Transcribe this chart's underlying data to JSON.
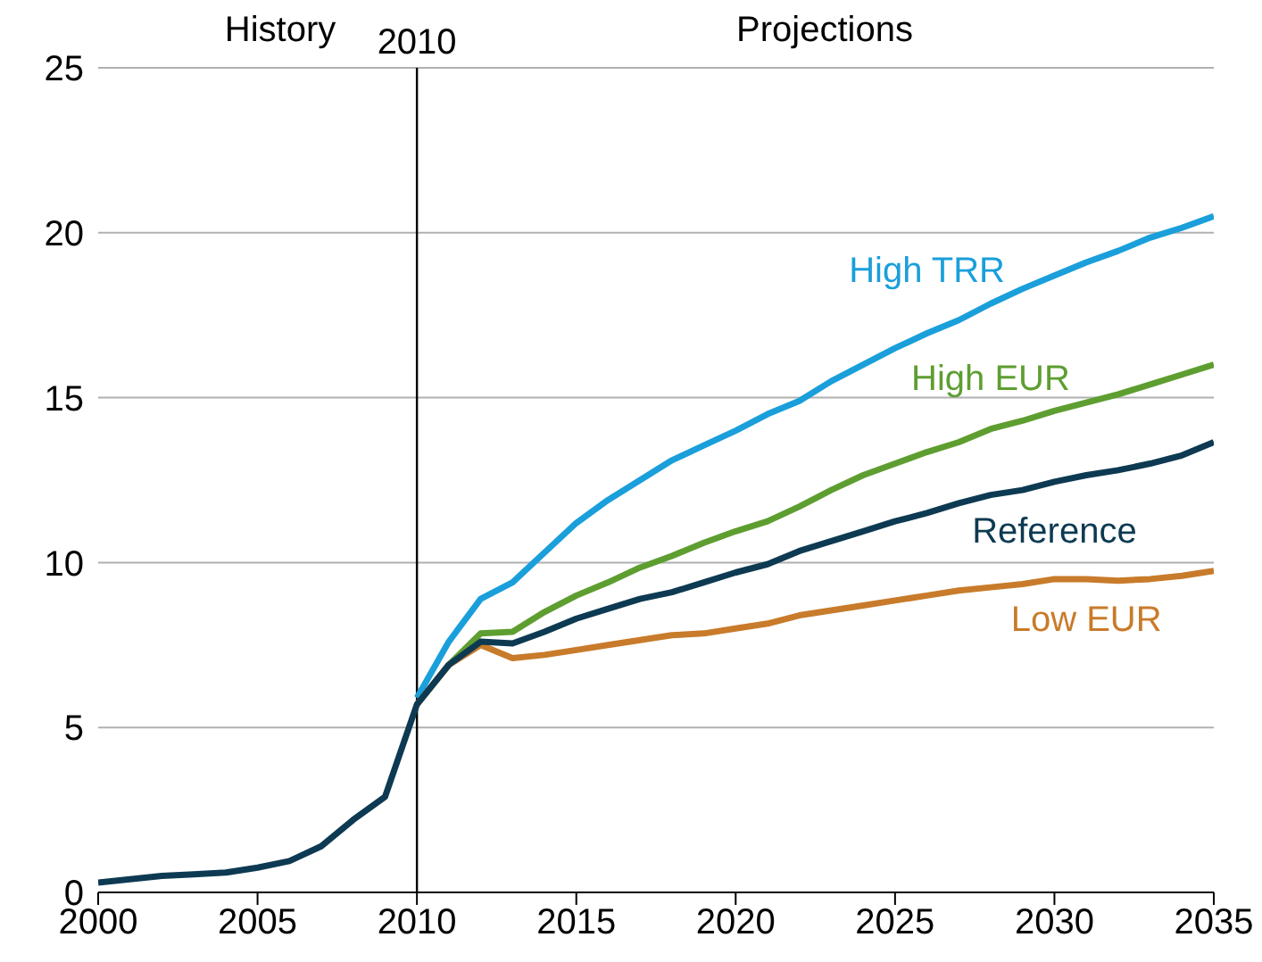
{
  "chart_data": {
    "type": "line",
    "x": [
      2000,
      2001,
      2002,
      2003,
      2004,
      2005,
      2006,
      2007,
      2008,
      2009,
      2010,
      2011,
      2012,
      2013,
      2014,
      2015,
      2016,
      2017,
      2018,
      2019,
      2020,
      2021,
      2022,
      2023,
      2024,
      2025,
      2026,
      2027,
      2028,
      2029,
      2030,
      2031,
      2032,
      2033,
      2034,
      2035
    ],
    "series": [
      {
        "name": "High TRR",
        "color": "#1a9fdb",
        "values": [
          null,
          null,
          null,
          null,
          null,
          null,
          null,
          null,
          null,
          null,
          5.9,
          7.6,
          8.9,
          9.4,
          10.3,
          11.2,
          11.9,
          12.5,
          13.1,
          13.55,
          14.0,
          14.5,
          14.9,
          15.5,
          16.0,
          16.5,
          16.95,
          17.35,
          17.85,
          18.3,
          18.7,
          19.1,
          19.45,
          19.85,
          20.15,
          20.5
        ]
      },
      {
        "name": "High EUR",
        "color": "#5e9e31",
        "values": [
          null,
          null,
          null,
          null,
          null,
          null,
          null,
          null,
          null,
          null,
          5.7,
          6.9,
          7.85,
          7.9,
          8.5,
          9.0,
          9.4,
          9.85,
          10.2,
          10.6,
          10.95,
          11.25,
          11.7,
          12.2,
          12.65,
          13.0,
          13.35,
          13.65,
          14.05,
          14.3,
          14.6,
          14.85,
          15.1,
          15.4,
          15.7,
          16.0
        ]
      },
      {
        "name": "Low EUR",
        "color": "#c87b2a",
        "values": [
          null,
          null,
          null,
          null,
          null,
          null,
          null,
          null,
          null,
          null,
          5.7,
          6.9,
          7.5,
          7.1,
          7.2,
          7.35,
          7.5,
          7.65,
          7.8,
          7.85,
          8.0,
          8.15,
          8.4,
          8.55,
          8.7,
          8.85,
          9.0,
          9.15,
          9.25,
          9.35,
          9.5,
          9.5,
          9.45,
          9.5,
          9.6,
          9.75
        ]
      },
      {
        "name": "Reference",
        "color": "#0d3a52",
        "values": [
          0.3,
          0.4,
          0.5,
          0.55,
          0.6,
          0.75,
          0.95,
          1.4,
          2.2,
          2.9,
          5.7,
          6.9,
          7.6,
          7.55,
          7.9,
          8.3,
          8.6,
          8.9,
          9.1,
          9.4,
          9.7,
          9.95,
          10.35,
          10.65,
          10.95,
          11.25,
          11.5,
          11.8,
          12.05,
          12.2,
          12.45,
          12.65,
          12.8,
          13.0,
          13.25,
          13.65
        ]
      }
    ],
    "xlim": [
      2000,
      2035
    ],
    "xticks": [
      2000,
      2005,
      2010,
      2015,
      2020,
      2025,
      2030,
      2035
    ],
    "ylim": [
      0,
      25
    ],
    "yticks": [
      0,
      5,
      10,
      15,
      20,
      25
    ],
    "grid": "y",
    "marker": "none",
    "line_style": "solid",
    "ref_lines": [
      {
        "axis": "x",
        "value": 2010,
        "label": "2010",
        "color": "#000000"
      }
    ],
    "annotations": [
      "History",
      "Projections"
    ]
  }
}
